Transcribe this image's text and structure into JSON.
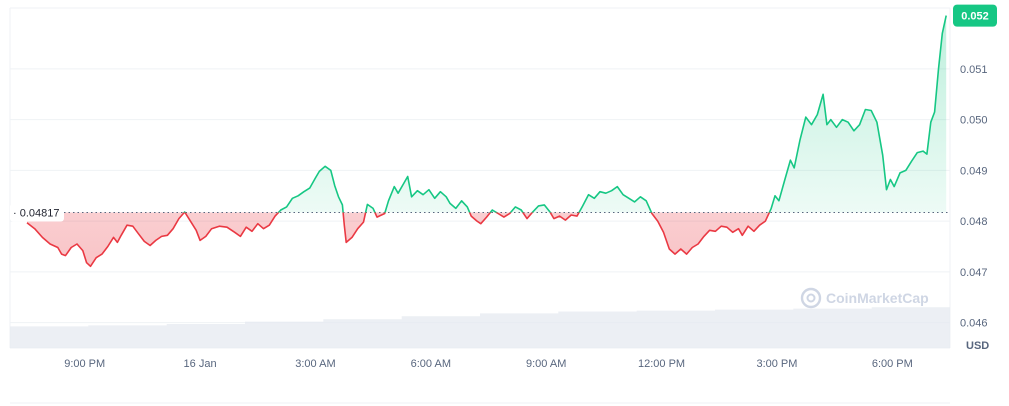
{
  "chart_data": {
    "type": "line",
    "baseline": 0.04817,
    "baseline_label": "0.04817",
    "current_price_label": "0.052",
    "currency": "USD",
    "watermark": "CoinMarketCap",
    "ylim": [
      0.0455,
      0.0522
    ],
    "y_ticks": [
      {
        "value": 0.051,
        "label": "0.051"
      },
      {
        "value": 0.05,
        "label": "0.050"
      },
      {
        "value": 0.049,
        "label": "0.049"
      },
      {
        "value": 0.048,
        "label": "0.048"
      },
      {
        "value": 0.047,
        "label": "0.047"
      },
      {
        "value": 0.046,
        "label": "0.046"
      }
    ],
    "x_ticks": [
      {
        "hour": 1.5,
        "label": "9:00 PM"
      },
      {
        "hour": 4.5,
        "label": "16 Jan"
      },
      {
        "hour": 7.5,
        "label": "3:00 AM"
      },
      {
        "hour": 10.5,
        "label": "6:00 AM"
      },
      {
        "hour": 13.5,
        "label": "9:00 AM"
      },
      {
        "hour": 16.5,
        "label": "12:00 PM"
      },
      {
        "hour": 19.5,
        "label": "3:00 PM"
      },
      {
        "hour": 22.5,
        "label": "6:00 PM"
      }
    ],
    "x_range": [
      0,
      24
    ],
    "series": [
      {
        "points": [
          [
            0.0,
            0.04797
          ],
          [
            0.2,
            0.04785
          ],
          [
            0.4,
            0.04768
          ],
          [
            0.6,
            0.04755
          ],
          [
            0.8,
            0.04748
          ],
          [
            0.9,
            0.04735
          ],
          [
            1.0,
            0.04732
          ],
          [
            1.15,
            0.04748
          ],
          [
            1.3,
            0.04755
          ],
          [
            1.45,
            0.04742
          ],
          [
            1.55,
            0.04718
          ],
          [
            1.65,
            0.04711
          ],
          [
            1.8,
            0.04728
          ],
          [
            1.95,
            0.04735
          ],
          [
            2.1,
            0.0475
          ],
          [
            2.25,
            0.04768
          ],
          [
            2.35,
            0.04758
          ],
          [
            2.45,
            0.04772
          ],
          [
            2.6,
            0.04792
          ],
          [
            2.75,
            0.0479
          ],
          [
            2.9,
            0.04775
          ],
          [
            3.05,
            0.0476
          ],
          [
            3.2,
            0.04752
          ],
          [
            3.35,
            0.04762
          ],
          [
            3.5,
            0.0477
          ],
          [
            3.65,
            0.04772
          ],
          [
            3.8,
            0.04785
          ],
          [
            3.95,
            0.04805
          ],
          [
            4.1,
            0.04818
          ],
          [
            4.25,
            0.048
          ],
          [
            4.4,
            0.04782
          ],
          [
            4.5,
            0.04762
          ],
          [
            4.65,
            0.0477
          ],
          [
            4.8,
            0.04785
          ],
          [
            5.0,
            0.0479
          ],
          [
            5.2,
            0.04788
          ],
          [
            5.4,
            0.04778
          ],
          [
            5.55,
            0.0477
          ],
          [
            5.7,
            0.04788
          ],
          [
            5.85,
            0.0478
          ],
          [
            6.0,
            0.04795
          ],
          [
            6.15,
            0.04785
          ],
          [
            6.3,
            0.04792
          ],
          [
            6.45,
            0.0481
          ],
          [
            6.6,
            0.04822
          ],
          [
            6.75,
            0.04828
          ],
          [
            6.9,
            0.04845
          ],
          [
            7.05,
            0.0485
          ],
          [
            7.2,
            0.04858
          ],
          [
            7.35,
            0.04865
          ],
          [
            7.5,
            0.04885
          ],
          [
            7.6,
            0.04898
          ],
          [
            7.75,
            0.04908
          ],
          [
            7.9,
            0.049
          ],
          [
            8.0,
            0.0487
          ],
          [
            8.1,
            0.04848
          ],
          [
            8.2,
            0.04832
          ],
          [
            8.25,
            0.04792
          ],
          [
            8.3,
            0.04758
          ],
          [
            8.45,
            0.04768
          ],
          [
            8.6,
            0.04785
          ],
          [
            8.75,
            0.04798
          ],
          [
            8.85,
            0.04833
          ],
          [
            9.0,
            0.04825
          ],
          [
            9.1,
            0.04808
          ],
          [
            9.3,
            0.04815
          ],
          [
            9.4,
            0.0484
          ],
          [
            9.55,
            0.04868
          ],
          [
            9.65,
            0.04855
          ],
          [
            9.8,
            0.04875
          ],
          [
            9.9,
            0.04888
          ],
          [
            10.0,
            0.04848
          ],
          [
            10.15,
            0.0486
          ],
          [
            10.3,
            0.04852
          ],
          [
            10.45,
            0.04862
          ],
          [
            10.6,
            0.04845
          ],
          [
            10.75,
            0.04858
          ],
          [
            10.9,
            0.04848
          ],
          [
            11.0,
            0.04835
          ],
          [
            11.15,
            0.04825
          ],
          [
            11.3,
            0.0484
          ],
          [
            11.45,
            0.04828
          ],
          [
            11.55,
            0.0481
          ],
          [
            11.7,
            0.048
          ],
          [
            11.8,
            0.04795
          ],
          [
            11.95,
            0.04808
          ],
          [
            12.1,
            0.04822
          ],
          [
            12.25,
            0.04815
          ],
          [
            12.4,
            0.04808
          ],
          [
            12.55,
            0.04815
          ],
          [
            12.7,
            0.04828
          ],
          [
            12.85,
            0.04822
          ],
          [
            13.0,
            0.04805
          ],
          [
            13.15,
            0.04818
          ],
          [
            13.3,
            0.0483
          ],
          [
            13.45,
            0.04832
          ],
          [
            13.6,
            0.04818
          ],
          [
            13.7,
            0.04805
          ],
          [
            13.85,
            0.0481
          ],
          [
            14.0,
            0.04802
          ],
          [
            14.15,
            0.04812
          ],
          [
            14.3,
            0.0481
          ],
          [
            14.45,
            0.0483
          ],
          [
            14.6,
            0.04852
          ],
          [
            14.75,
            0.04845
          ],
          [
            14.9,
            0.04858
          ],
          [
            15.05,
            0.04855
          ],
          [
            15.2,
            0.0486
          ],
          [
            15.35,
            0.04868
          ],
          [
            15.5,
            0.04852
          ],
          [
            15.65,
            0.04845
          ],
          [
            15.8,
            0.04838
          ],
          [
            15.95,
            0.04848
          ],
          [
            16.1,
            0.0484
          ],
          [
            16.25,
            0.04815
          ],
          [
            16.4,
            0.048
          ],
          [
            16.55,
            0.04778
          ],
          [
            16.7,
            0.04745
          ],
          [
            16.85,
            0.04735
          ],
          [
            17.0,
            0.04745
          ],
          [
            17.15,
            0.04735
          ],
          [
            17.3,
            0.04748
          ],
          [
            17.45,
            0.04755
          ],
          [
            17.6,
            0.0477
          ],
          [
            17.75,
            0.04782
          ],
          [
            17.9,
            0.0478
          ],
          [
            18.05,
            0.0479
          ],
          [
            18.2,
            0.04788
          ],
          [
            18.35,
            0.04778
          ],
          [
            18.5,
            0.04785
          ],
          [
            18.6,
            0.04772
          ],
          [
            18.75,
            0.0479
          ],
          [
            18.9,
            0.0478
          ],
          [
            19.05,
            0.04792
          ],
          [
            19.2,
            0.048
          ],
          [
            19.35,
            0.04825
          ],
          [
            19.45,
            0.0485
          ],
          [
            19.55,
            0.0484
          ],
          [
            19.7,
            0.0488
          ],
          [
            19.85,
            0.0492
          ],
          [
            19.95,
            0.04905
          ],
          [
            20.1,
            0.0496
          ],
          [
            20.25,
            0.05005
          ],
          [
            20.4,
            0.0499
          ],
          [
            20.55,
            0.0501
          ],
          [
            20.7,
            0.0505
          ],
          [
            20.8,
            0.0499
          ],
          [
            20.9,
            0.05
          ],
          [
            21.05,
            0.04985
          ],
          [
            21.2,
            0.05
          ],
          [
            21.35,
            0.04995
          ],
          [
            21.5,
            0.04978
          ],
          [
            21.65,
            0.0499
          ],
          [
            21.8,
            0.0502
          ],
          [
            21.95,
            0.05018
          ],
          [
            22.1,
            0.04995
          ],
          [
            22.25,
            0.0493
          ],
          [
            22.35,
            0.04862
          ],
          [
            22.45,
            0.04882
          ],
          [
            22.55,
            0.04868
          ],
          [
            22.7,
            0.04895
          ],
          [
            22.85,
            0.049
          ],
          [
            23.0,
            0.04918
          ],
          [
            23.15,
            0.04935
          ],
          [
            23.3,
            0.04938
          ],
          [
            23.4,
            0.04932
          ],
          [
            23.5,
            0.04995
          ],
          [
            23.6,
            0.05015
          ],
          [
            23.7,
            0.051
          ],
          [
            23.8,
            0.0517
          ],
          [
            23.9,
            0.05205
          ]
        ]
      }
    ],
    "volume_levels": [
      0.45,
      0.47,
      0.5,
      0.55,
      0.6,
      0.66,
      0.72,
      0.76,
      0.78,
      0.8,
      0.82,
      0.85
    ],
    "colors": {
      "up": "#16c784",
      "down": "#ea3943",
      "grid": "#eff2f5",
      "baseline": "#58667e",
      "volume": "#e6eaf0"
    }
  }
}
